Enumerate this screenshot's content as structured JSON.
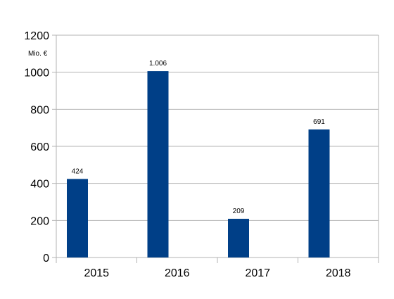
{
  "chart_data": {
    "type": "bar",
    "title": "",
    "xlabel": "",
    "ylabel": "",
    "unit_label": "Mio. €",
    "categories": [
      "2015",
      "2016",
      "2017",
      "2018"
    ],
    "values": [
      424,
      1006,
      209,
      691
    ],
    "data_labels": [
      "424",
      "1.006",
      "209",
      "691"
    ],
    "ylim": [
      0,
      1200
    ],
    "yticks": [
      0,
      200,
      400,
      600,
      800,
      1000,
      1200
    ],
    "ytick_labels": [
      "0",
      "200",
      "400",
      "600",
      "800",
      "1000",
      "1200"
    ],
    "grid": true,
    "legend": "none",
    "bar_color": "#003f87",
    "grid_color": "#b3b3b3"
  }
}
